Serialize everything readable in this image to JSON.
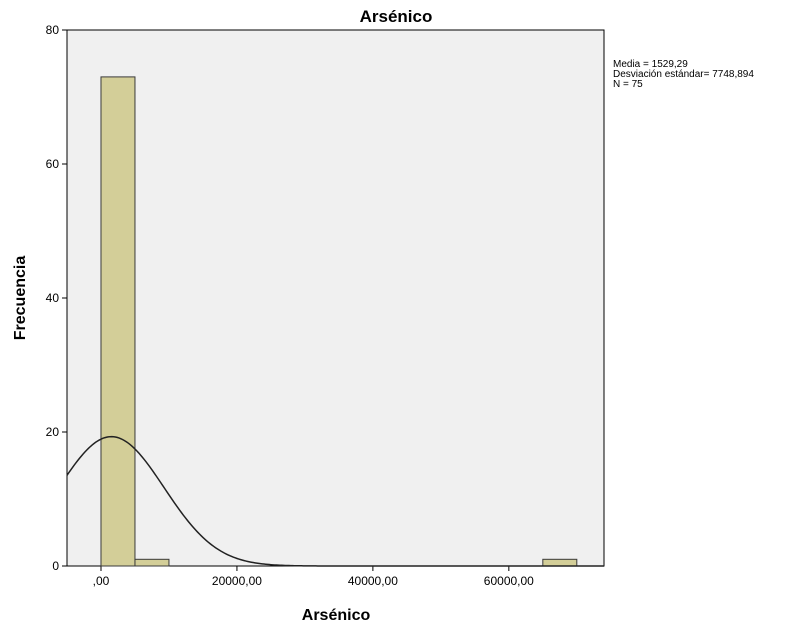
{
  "chart_data": {
    "type": "histogram",
    "title": "Arsénico",
    "xlabel": "Arsénico",
    "ylabel": "Frecuencia",
    "xlim": [
      -5000,
      74000
    ],
    "ylim": [
      0,
      80
    ],
    "x_ticks": [
      {
        "value": 0,
        "label": ",00"
      },
      {
        "value": 20000,
        "label": "20000,00"
      },
      {
        "value": 40000,
        "label": "40000,00"
      },
      {
        "value": 60000,
        "label": "60000,00"
      }
    ],
    "y_ticks": [
      {
        "value": 0,
        "label": "0"
      },
      {
        "value": 20,
        "label": "20"
      },
      {
        "value": 40,
        "label": "40"
      },
      {
        "value": 60,
        "label": "60"
      },
      {
        "value": 80,
        "label": "80"
      }
    ],
    "bins": [
      {
        "start": 0,
        "end": 5000,
        "count": 73
      },
      {
        "start": 5000,
        "end": 10000,
        "count": 1
      },
      {
        "start": 65000,
        "end": 70000,
        "count": 1
      }
    ],
    "normal_curve": {
      "mean": 1529.29,
      "sd": 7748.894,
      "n": 75,
      "bin_width": 5000
    },
    "stats_text": [
      "Media = 1529,29",
      "Desviación estándar= 7748,894",
      "N = 75"
    ],
    "colors": {
      "plot_bg": "#f0f0f0",
      "bar_fill": "#d3ce98",
      "bar_stroke": "#3a3a3a",
      "curve": "#222222"
    }
  }
}
